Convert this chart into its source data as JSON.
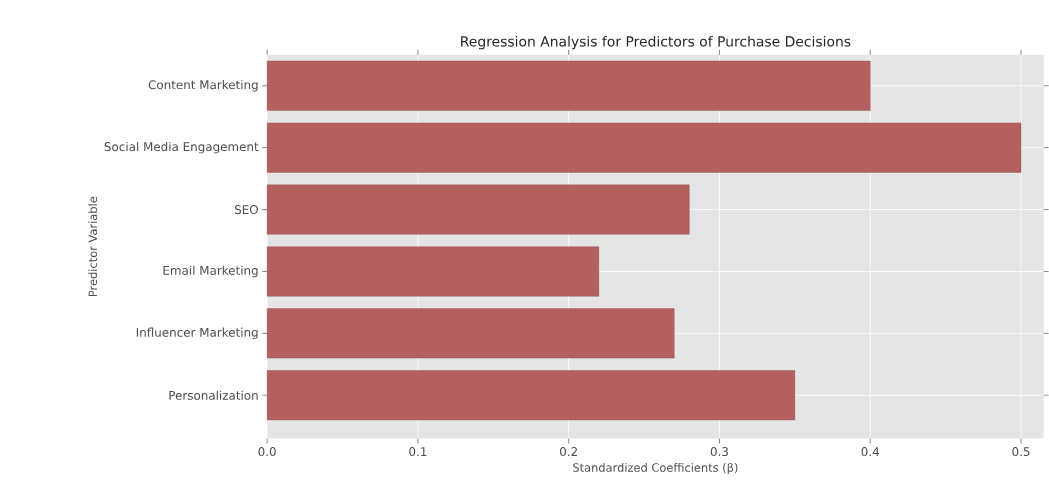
{
  "chart_data": {
    "type": "bar",
    "orientation": "horizontal",
    "title": "Regression Analysis for Predictors of Purchase Decisions",
    "xlabel": "Standardized Coefficients (β)",
    "ylabel": "Predictor Variable",
    "categories": [
      "Content Marketing",
      "Social Media Engagement",
      "SEO",
      "Email Marketing",
      "Influencer Marketing",
      "Personalization"
    ],
    "values": [
      0.4,
      0.5,
      0.28,
      0.22,
      0.27,
      0.35
    ],
    "color": "#b56060",
    "xlim": [
      0,
      0.515
    ],
    "xticks": [
      {
        "value": 0,
        "label": "0.0"
      },
      0.1,
      0.2,
      0.3,
      0.4,
      0.5
    ],
    "grid": true
  }
}
